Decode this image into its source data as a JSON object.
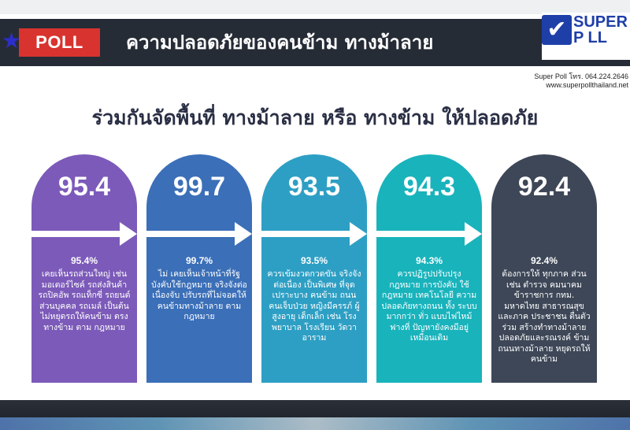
{
  "header": {
    "poll_label": "POLL",
    "title": "ความปลอดภัยของคนข้าม  ทางม้าลาย",
    "logo": {
      "line1": "SUPER",
      "line2": "P LL"
    },
    "contact_phone": "Super Poll โทร. 064.224.2646",
    "website": "www.superpollthailand.net"
  },
  "subtitle": "ร่วมกันจัดพื้นที่ ทางม้าลาย หรือ ทางข้าม ให้ปลอดภัย",
  "colors": {
    "header_bg": "#262c36",
    "poll_red": "#d8332f",
    "card1": "#7c5ab9",
    "card2": "#3b6fb8",
    "card3": "#2e9fc4",
    "card4": "#19b3bc",
    "card5": "#3d4757"
  },
  "cards": [
    {
      "value": "95.4",
      "percent": "95.4%",
      "text": "เคยเห็นรถส่วนใหญ่ เช่น มอเตอร์ไซค์ รถส่งสินค้า รถปิคอัพ รถแท็กซี่ รถยนต์ส่วนบุคคล รถเมล์ เป็นต้น ไม่หยุดรถให้คนข้าม ตรงทางข้าม ตาม กฎหมาย"
    },
    {
      "value": "99.7",
      "percent": "99.7%",
      "text": "ไม่ เคยเห็นเจ้าหน้าที่รัฐ บังคับใช้กฎหมาย จริงจังต่อเนื่องจับ ปรับรถที่ไม่จอดให้ คนข้ามทางม้าลาย ตามกฎหมาย"
    },
    {
      "value": "93.5",
      "percent": "93.5%",
      "text": "ควรเข้มงวดกวดขัน จริงจังต่อเนื่อง เป็นพิเศษ ที่จุด เปราะบาง คนข้าม ถนน คนเจ็บป่วย หญิงมีครรภ์ ผู้สูงอายุ เด็กเล็ก เช่น โรงพยาบาล โรงเรียน วัดวาอาราม"
    },
    {
      "value": "94.3",
      "percent": "94.3%",
      "text": "ควรปฏิรูปปรับปรุง กฎหมาย การบังคับ ใช้กฎหมาย เทคโนโลยี ความ ปลอดภัยทางถนน ทั้ง ระบบ มากกว่า ทั่ว แบบไฟไหม้ฟางที่ ปัญหายังคงมีอยู่ เหมือนเดิม"
    },
    {
      "value": "92.4",
      "percent": "92.4%",
      "text": "ต้องการให้ ทุกภาค ส่วน เช่น ตำรวจ คมนาคม ข้าราชการ กทม. มหาดไทย สาธารณสุข และภาค ประชาชน ตื่นตัวร่วม สร้างทำทางม้าลาย ปลอดภัยและรณรงค์ ข้ามถนนทางม้าลาย หยุดรถให้คนข้าม"
    }
  ]
}
